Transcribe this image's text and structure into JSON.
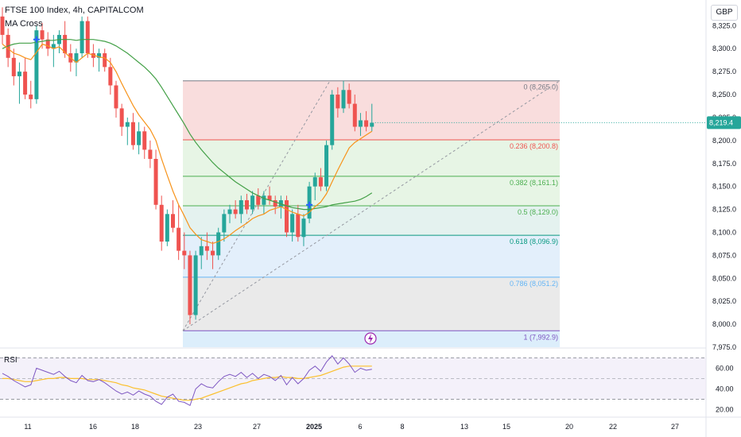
{
  "header": {
    "title": "FTSE 100 Index, 4h, CAPITALCOM",
    "indicator": "MA Cross",
    "currency": "GBP"
  },
  "rsi_panel": {
    "label": "RSI"
  },
  "colors": {
    "up": "#26a69a",
    "down": "#ef5350",
    "ma_fast": "#f7931a",
    "ma_slow": "#43a047",
    "rsi_line": "#7e57c2",
    "rsi_ma": "#fbc02d",
    "cross": "#2962ff",
    "price_tag": "#26a69a"
  },
  "chart_data": {
    "type": "candlestick",
    "y_axis": {
      "ticks": [
        "8,325.0",
        "8,300.0",
        "8,275.0",
        "8,250.0",
        "8,225.0",
        "8,200.0",
        "8,175.0",
        "8,150.0",
        "8,125.0",
        "8,100.0",
        "8,075.0",
        "8,050.0",
        "8,025.0",
        "8,000.0",
        "7,975.0"
      ],
      "ylim": [
        7975,
        8340
      ]
    },
    "x_axis": {
      "ticks": [
        "11",
        "16",
        "18",
        "23",
        "27",
        "2025",
        "6",
        "8",
        "13",
        "15",
        "20",
        "22",
        "27"
      ]
    },
    "last_price": {
      "value": 8219.4,
      "label": "8,219.4"
    },
    "candles": [
      [
        8335,
        8345,
        8305,
        8315
      ],
      [
        8315,
        8322,
        8280,
        8290
      ],
      [
        8290,
        8300,
        8260,
        8270
      ],
      [
        8270,
        8285,
        8240,
        8275
      ],
      [
        8275,
        8290,
        8245,
        8250
      ],
      [
        8250,
        8265,
        8235,
        8245
      ],
      [
        8245,
        8325,
        8240,
        8320
      ],
      [
        8320,
        8328,
        8300,
        8310
      ],
      [
        8310,
        8318,
        8292,
        8300
      ],
      [
        8300,
        8315,
        8280,
        8305
      ],
      [
        8305,
        8320,
        8295,
        8315
      ],
      [
        8315,
        8330,
        8290,
        8295
      ],
      [
        8295,
        8305,
        8275,
        8285
      ],
      [
        8285,
        8300,
        8270,
        8295
      ],
      [
        8295,
        8335,
        8290,
        8330
      ],
      [
        8330,
        8335,
        8290,
        8295
      ],
      [
        8295,
        8305,
        8280,
        8290
      ],
      [
        8290,
        8300,
        8275,
        8295
      ],
      [
        8295,
        8300,
        8275,
        8280
      ],
      [
        8280,
        8290,
        8250,
        8260
      ],
      [
        8260,
        8265,
        8225,
        8235
      ],
      [
        8235,
        8240,
        8205,
        8215
      ],
      [
        8215,
        8225,
        8195,
        8220
      ],
      [
        8220,
        8230,
        8190,
        8195
      ],
      [
        8195,
        8220,
        8185,
        8210
      ],
      [
        8210,
        8215,
        8180,
        8190
      ],
      [
        8190,
        8200,
        8170,
        8180
      ],
      [
        8180,
        8190,
        8125,
        8130
      ],
      [
        8130,
        8140,
        8080,
        8090
      ],
      [
        8090,
        8125,
        8085,
        8120
      ],
      [
        8120,
        8135,
        8100,
        8105
      ],
      [
        8105,
        8130,
        8070,
        8080
      ],
      [
        8080,
        8100,
        8060,
        8075
      ],
      [
        8075,
        8080,
        8000,
        8010
      ],
      [
        8010,
        8080,
        8005,
        8075
      ],
      [
        8075,
        8095,
        8060,
        8085
      ],
      [
        8085,
        8100,
        8070,
        8080
      ],
      [
        8080,
        8090,
        8060,
        8075
      ],
      [
        8075,
        8105,
        8070,
        8100
      ],
      [
        8100,
        8125,
        8090,
        8120
      ],
      [
        8120,
        8130,
        8110,
        8125
      ],
      [
        8125,
        8135,
        8115,
        8120
      ],
      [
        8120,
        8140,
        8110,
        8135
      ],
      [
        8135,
        8142,
        8120,
        8125
      ],
      [
        8125,
        8145,
        8120,
        8140
      ],
      [
        8140,
        8148,
        8125,
        8130
      ],
      [
        8130,
        8145,
        8120,
        8140
      ],
      [
        8140,
        8150,
        8130,
        8135
      ],
      [
        8135,
        8140,
        8120,
        8128
      ],
      [
        8128,
        8140,
        8115,
        8135
      ],
      [
        8135,
        8140,
        8095,
        8100
      ],
      [
        8100,
        8125,
        8090,
        8120
      ],
      [
        8120,
        8130,
        8090,
        8095
      ],
      [
        8095,
        8120,
        8085,
        8115
      ],
      [
        8115,
        8155,
        8110,
        8150
      ],
      [
        8150,
        8165,
        8135,
        8160
      ],
      [
        8160,
        8170,
        8145,
        8150
      ],
      [
        8150,
        8200,
        8145,
        8195
      ],
      [
        8195,
        8255,
        8190,
        8250
      ],
      [
        8250,
        8258,
        8225,
        8235
      ],
      [
        8235,
        8265,
        8230,
        8255
      ],
      [
        8255,
        8262,
        8235,
        8240
      ],
      [
        8240,
        8250,
        8210,
        8215
      ],
      [
        8215,
        8230,
        8205,
        8222
      ],
      [
        8222,
        8232,
        8210,
        8215
      ],
      [
        8215,
        8240,
        8210,
        8219.4
      ]
    ],
    "ma_fast": [
      8305,
      8300,
      8295,
      8293,
      8290,
      8288,
      8296,
      8305,
      8303,
      8300,
      8302,
      8296,
      8290,
      8285,
      8290,
      8295,
      8293,
      8291,
      8290,
      8285,
      8275,
      8262,
      8250,
      8238,
      8228,
      8220,
      8212,
      8200,
      8180,
      8162,
      8145,
      8130,
      8118,
      8105,
      8098,
      8092,
      8090,
      8088,
      8090,
      8093,
      8097,
      8102,
      8106,
      8110,
      8115,
      8118,
      8120,
      8124,
      8126,
      8128,
      8125,
      8122,
      8120,
      8118,
      8122,
      8128,
      8133,
      8142,
      8155,
      8168,
      8180,
      8192,
      8198,
      8202,
      8206,
      8210
    ],
    "ma_slow": [
      8300,
      8303,
      8305,
      8306,
      8306,
      8306,
      8307,
      8308,
      8309,
      8309,
      8310,
      8310,
      8310,
      8309,
      8310,
      8310,
      8310,
      8309,
      8308,
      8306,
      8303,
      8299,
      8295,
      8290,
      8285,
      8280,
      8274,
      8267,
      8258,
      8248,
      8238,
      8228,
      8218,
      8207,
      8198,
      8190,
      8183,
      8176,
      8170,
      8165,
      8160,
      8155,
      8151,
      8147,
      8143,
      8140,
      8137,
      8135,
      8133,
      8131,
      8129,
      8127,
      8126,
      8125,
      8125,
      8126,
      8127,
      8128,
      8130,
      8131,
      8132,
      8133,
      8134,
      8136,
      8139,
      8143
    ],
    "crosses": [
      {
        "index": 6,
        "value": 8310
      },
      {
        "index": 54,
        "value": 8130
      }
    ],
    "fibonacci": {
      "levels": [
        {
          "ratio": 0,
          "price": 8265.0,
          "label": "0 (8,265.0)",
          "line": "#787b86",
          "fill": "#f8d7d7"
        },
        {
          "ratio": 0.236,
          "price": 8200.8,
          "label": "0.236 (8,200.8)",
          "line": "#ef5350",
          "fill": "#e3f3e1"
        },
        {
          "ratio": 0.382,
          "price": 8161.1,
          "label": "0.382 (8,161.1)",
          "line": "#4caf50",
          "fill": "#e3f3e1"
        },
        {
          "ratio": 0.5,
          "price": 8129.0,
          "label": "0.5 (8,129.0)",
          "line": "#4caf50",
          "fill": "#dff0ec"
        },
        {
          "ratio": 0.618,
          "price": 8096.9,
          "label": "0.618 (8,096.9)",
          "line": "#089981",
          "fill": "#deecfa"
        },
        {
          "ratio": 0.786,
          "price": 8051.2,
          "label": "0.786 (8,051.2)",
          "line": "#64b5f6",
          "fill": "#e6e6e6"
        },
        {
          "ratio": 1,
          "price": 7992.9,
          "label": "1 (7,992.9)",
          "line": "#7e57c2",
          "fill": "#dceefb"
        }
      ]
    },
    "rsi": {
      "ticks": [
        "60.00",
        "40.00",
        "20.00"
      ],
      "ylim": [
        15,
        78
      ],
      "values": [
        55,
        52,
        48,
        45,
        42,
        44,
        60,
        58,
        56,
        54,
        57,
        52,
        48,
        46,
        53,
        48,
        47,
        49,
        46,
        42,
        38,
        35,
        37,
        34,
        38,
        35,
        33,
        28,
        25,
        32,
        35,
        28,
        27,
        24,
        40,
        45,
        42,
        41,
        47,
        52,
        54,
        52,
        56,
        51,
        55,
        50,
        54,
        52,
        48,
        53,
        44,
        51,
        45,
        50,
        58,
        62,
        57,
        66,
        72,
        64,
        70,
        64,
        56,
        60,
        58,
        59
      ],
      "ma": [
        50,
        50,
        49,
        48,
        47,
        47,
        48,
        49,
        50,
        50,
        51,
        51,
        50,
        50,
        50,
        49,
        49,
        49,
        48,
        47,
        46,
        44,
        43,
        41,
        40,
        39,
        37,
        35,
        33,
        32,
        31,
        30,
        29,
        29,
        30,
        31,
        33,
        35,
        37,
        39,
        41,
        43,
        45,
        46,
        48,
        49,
        50,
        51,
        51,
        52,
        51,
        51,
        50,
        50,
        51,
        52,
        53,
        55,
        57,
        59,
        61,
        62,
        62,
        62,
        62,
        62
      ]
    }
  }
}
